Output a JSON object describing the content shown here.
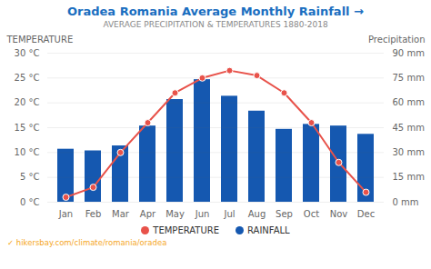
{
  "chart_data": {
    "type": "bar",
    "title": "Oradea Romania Average Monthly Rainfall →",
    "subtitle": "AVERAGE PRECIPITATION & TEMPERATURES 1880-2018",
    "categories": [
      "Jan",
      "Feb",
      "Mar",
      "Apr",
      "May",
      "Jun",
      "Jul",
      "Aug",
      "Sep",
      "Oct",
      "Nov",
      "Dec"
    ],
    "series": [
      {
        "name": "TEMPERATURE",
        "type": "line",
        "marker": "o",
        "color": "#e8524a",
        "values": [
          1.0,
          3.0,
          10.0,
          16.0,
          22.0,
          25.0,
          26.5,
          25.5,
          22.0,
          16.0,
          8.0,
          2.0
        ]
      },
      {
        "name": "RAINFALL",
        "type": "bar",
        "axis": "y2",
        "color": "#1558b0",
        "values": [
          32,
          31,
          34,
          46,
          62,
          74,
          64,
          55,
          44,
          47,
          46,
          41
        ]
      }
    ],
    "ylabel": "TEMPERATURE",
    "y2label": "Precipitation",
    "ylim": [
      0,
      30
    ],
    "yticks": [
      {
        "value": 0,
        "label": "0 °C"
      },
      {
        "value": 5,
        "label": "5 °C"
      },
      {
        "value": 10,
        "label": "10 °C"
      },
      {
        "value": 15,
        "label": "15 °C"
      },
      {
        "value": 20,
        "label": "20 °C"
      },
      {
        "value": 25,
        "label": "25 °C"
      },
      {
        "value": 30,
        "label": "30 °C"
      }
    ],
    "y2lim": [
      0,
      90
    ],
    "y2ticks": [
      {
        "value": 0,
        "label": "0 mm"
      },
      {
        "value": 15,
        "label": "15 mm"
      },
      {
        "value": 30,
        "label": "30 mm"
      },
      {
        "value": 45,
        "label": "45 mm"
      },
      {
        "value": 60,
        "label": "60 mm"
      },
      {
        "value": 75,
        "label": "75 mm"
      },
      {
        "value": 90,
        "label": "90 mm"
      }
    ],
    "grid": true,
    "legend": "bottom",
    "annotations": [
      "✓ hikersbay.com/climate/romania/oradea"
    ]
  }
}
